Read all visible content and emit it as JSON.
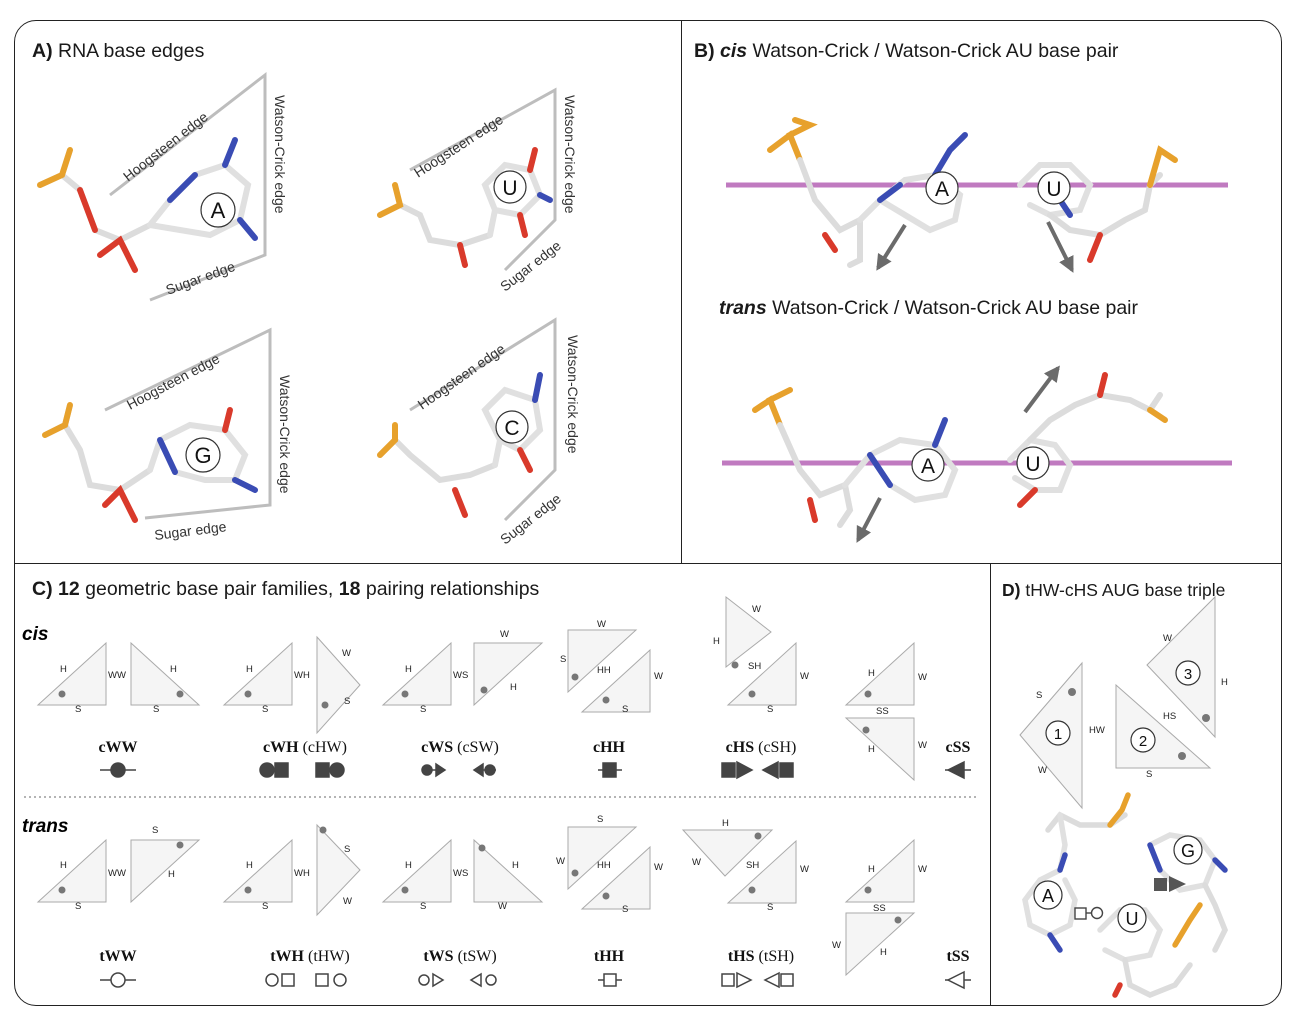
{
  "panel_a": {
    "letter": "A)",
    "title": "RNA base edges",
    "bases": [
      {
        "letter": "A",
        "hoogsteen": "Hoogsteen edge",
        "wc": "Watson-Crick edge",
        "sugar": "Sugar edge"
      },
      {
        "letter": "U",
        "hoogsteen": "Hoogsteen edge",
        "wc": "Watson-Crick edge",
        "sugar": "Sugar edge"
      },
      {
        "letter": "G",
        "hoogsteen": "Hoogsteen edge",
        "wc": "Watson-Crick edge",
        "sugar": "Sugar edge"
      },
      {
        "letter": "C",
        "hoogsteen": "Hoogsteen edge",
        "wc": "Watson-Crick edge",
        "sugar": "Sugar edge"
      }
    ]
  },
  "panel_b": {
    "letter": "B)",
    "cis_word": "cis",
    "cis_rest": "Watson-Crick / Watson-Crick AU base pair",
    "trans_word": "trans",
    "trans_rest": "Watson-Crick / Watson-Crick AU base pair",
    "base_a": "A",
    "base_u": "U"
  },
  "panel_c": {
    "letter": "C)",
    "n_families": "12",
    "families_text": "geometric base pair families,",
    "n_relationships": "18",
    "relationships_text": "pairing relationships",
    "cis_label": "cis",
    "trans_label": "trans",
    "cis_families": [
      {
        "name": "cWW",
        "alt": ""
      },
      {
        "name": "cWH",
        "alt": "(cHW)"
      },
      {
        "name": "cWS",
        "alt": "(cSW)"
      },
      {
        "name": "cHH",
        "alt": ""
      },
      {
        "name": "cHS",
        "alt": "(cSH)"
      },
      {
        "name": "cSS",
        "alt": ""
      }
    ],
    "trans_families": [
      {
        "name": "tWW",
        "alt": ""
      },
      {
        "name": "tWH",
        "alt": "(tHW)"
      },
      {
        "name": "tWS",
        "alt": "(tSW)"
      },
      {
        "name": "tHH",
        "alt": ""
      },
      {
        "name": "tHS",
        "alt": "(tSH)"
      },
      {
        "name": "tSS",
        "alt": ""
      }
    ],
    "edge_letters": {
      "h": "H",
      "s": "S",
      "w": "W",
      "ww": "WW",
      "wh": "WH",
      "ws": "WS",
      "hh": "HH",
      "sh": "SH",
      "ss": "SS"
    }
  },
  "panel_d": {
    "letter": "D)",
    "title": "tHW-cHS AUG base triple",
    "triangle_numbers": [
      "1",
      "2",
      "3"
    ],
    "edge_labels": {
      "s": "S",
      "w": "W",
      "hw": "HW",
      "hs": "HS",
      "h": "H"
    },
    "bases": [
      "A",
      "U",
      "G"
    ]
  },
  "colors": {
    "oxygen": "#d93a2b",
    "nitrogen": "#3a4cb4",
    "phosphorus": "#e7a12c",
    "carbon": "#e8e8e8",
    "plane": "#c07ac0",
    "arrow": "#6b6b6b",
    "symbol": "#444444"
  }
}
